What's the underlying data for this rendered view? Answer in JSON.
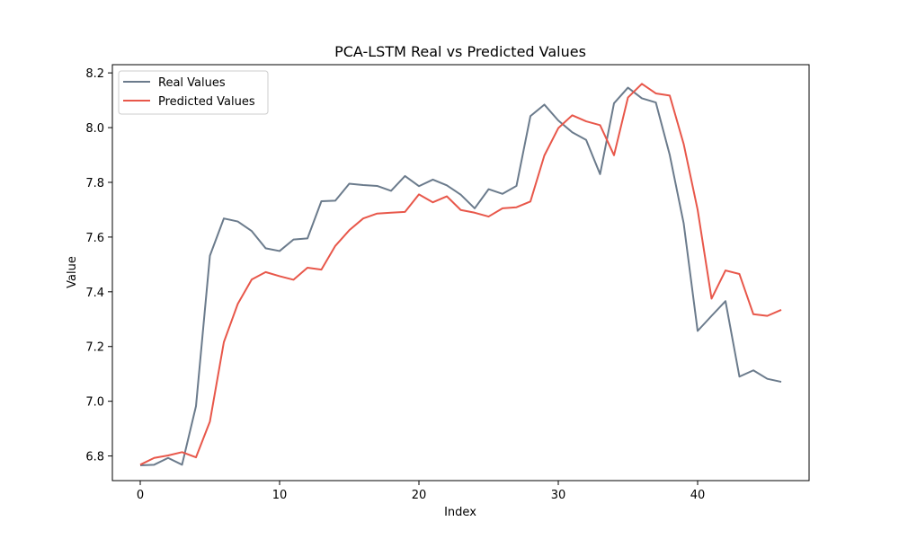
{
  "chart_data": {
    "type": "line",
    "title": "PCA-LSTM Real vs Predicted Values",
    "xlabel": "Index",
    "ylabel": "Value",
    "xlim": [
      -2,
      48
    ],
    "ylim": [
      6.71,
      8.23
    ],
    "xticks": [
      0,
      10,
      20,
      30,
      40
    ],
    "yticks": [
      6.8,
      7.0,
      7.2,
      7.4,
      7.6,
      7.8,
      8.0,
      8.2
    ],
    "grid": false,
    "legend_position": "top-left",
    "series": [
      {
        "name": "Real Values",
        "color": "#6b7b8c",
        "values": [
          6.766,
          6.768,
          6.793,
          6.768,
          6.982,
          7.532,
          7.668,
          7.657,
          7.622,
          7.559,
          7.549,
          7.591,
          7.595,
          7.731,
          7.733,
          7.795,
          7.79,
          7.787,
          7.769,
          7.823,
          7.786,
          7.81,
          7.789,
          7.755,
          7.705,
          7.775,
          7.758,
          7.787,
          8.042,
          8.084,
          8.026,
          7.983,
          7.955,
          7.83,
          8.089,
          8.146,
          8.107,
          8.092,
          7.9,
          7.65,
          7.257,
          7.312,
          7.366,
          7.09,
          7.113,
          7.082,
          7.071
        ]
      },
      {
        "name": "Predicted Values",
        "color": "#e8574a",
        "values": [
          6.768,
          6.793,
          6.802,
          6.814,
          6.795,
          6.926,
          7.216,
          7.356,
          7.445,
          7.472,
          7.457,
          7.444,
          7.488,
          7.481,
          7.568,
          7.625,
          7.668,
          7.686,
          7.689,
          7.692,
          7.756,
          7.727,
          7.749,
          7.699,
          7.689,
          7.675,
          7.705,
          7.709,
          7.73,
          7.898,
          7.998,
          8.045,
          8.023,
          8.009,
          7.899,
          8.11,
          8.16,
          8.125,
          8.117,
          7.94,
          7.7,
          7.375,
          7.478,
          7.465,
          7.318,
          7.312,
          7.334
        ]
      }
    ]
  }
}
